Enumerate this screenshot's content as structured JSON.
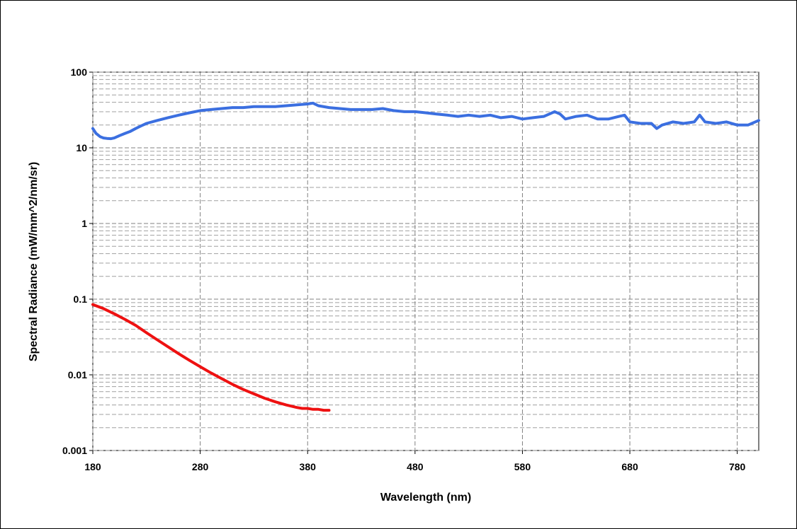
{
  "chart_data": {
    "type": "line",
    "title": "",
    "xlabel": "Wavelength (nm)",
    "ylabel": "Spectral Radiance (mW/mm^2/nm/sr)",
    "xlim": [
      180,
      800
    ],
    "ylim": [
      0.001,
      100
    ],
    "yscale": "log",
    "x_ticks": [
      180,
      280,
      380,
      480,
      580,
      680,
      780
    ],
    "x_tick_labels": [
      "180",
      "280",
      "380",
      "480",
      "580",
      "680",
      "780"
    ],
    "y_ticks": [
      0.001,
      0.01,
      0.1,
      1,
      10,
      100
    ],
    "y_tick_labels": [
      "0.001",
      "0.01",
      "0.1",
      "1",
      "10",
      "100"
    ],
    "grid": true,
    "legend": "none",
    "series": [
      {
        "color": "#3b6fe0",
        "x": [
          180,
          183,
          187,
          190,
          193,
          197,
          200,
          205,
          210,
          215,
          220,
          225,
          230,
          240,
          250,
          260,
          270,
          280,
          290,
          300,
          310,
          320,
          330,
          340,
          350,
          360,
          370,
          380,
          385,
          390,
          400,
          410,
          420,
          430,
          440,
          450,
          460,
          470,
          480,
          490,
          500,
          510,
          520,
          530,
          540,
          550,
          560,
          570,
          580,
          590,
          600,
          610,
          615,
          620,
          630,
          640,
          650,
          660,
          670,
          675,
          680,
          690,
          700,
          705,
          710,
          720,
          730,
          740,
          745,
          750,
          760,
          770,
          780,
          790,
          800
        ],
        "y": [
          18,
          15.5,
          14,
          13.5,
          13.3,
          13.2,
          13.5,
          14.5,
          15.5,
          16.5,
          18,
          19.5,
          21,
          23,
          25,
          27,
          29,
          31,
          32,
          33,
          34,
          34,
          35,
          35,
          35,
          36,
          37,
          38,
          39,
          36,
          34,
          33,
          32,
          32,
          32,
          33,
          31,
          30,
          30,
          29,
          28,
          27,
          26,
          27,
          26,
          27,
          25,
          26,
          24,
          25,
          26,
          30,
          28,
          24,
          26,
          27,
          24,
          24,
          26,
          27,
          22,
          21,
          21,
          18,
          20,
          22,
          21,
          22,
          27,
          22,
          21,
          22,
          20,
          20,
          23
        ]
      },
      {
        "color": "#ee1111",
        "x": [
          180,
          190,
          200,
          210,
          220,
          230,
          240,
          250,
          260,
          270,
          280,
          290,
          300,
          310,
          320,
          330,
          340,
          350,
          360,
          370,
          375,
          380,
          385,
          390,
          395,
          400
        ],
        "y": [
          0.085,
          0.075,
          0.064,
          0.054,
          0.045,
          0.036,
          0.029,
          0.0235,
          0.019,
          0.0155,
          0.0128,
          0.0106,
          0.0089,
          0.0075,
          0.0064,
          0.0056,
          0.0049,
          0.0044,
          0.004,
          0.0037,
          0.0036,
          0.0036,
          0.0035,
          0.0035,
          0.0034,
          0.0034
        ]
      }
    ]
  }
}
